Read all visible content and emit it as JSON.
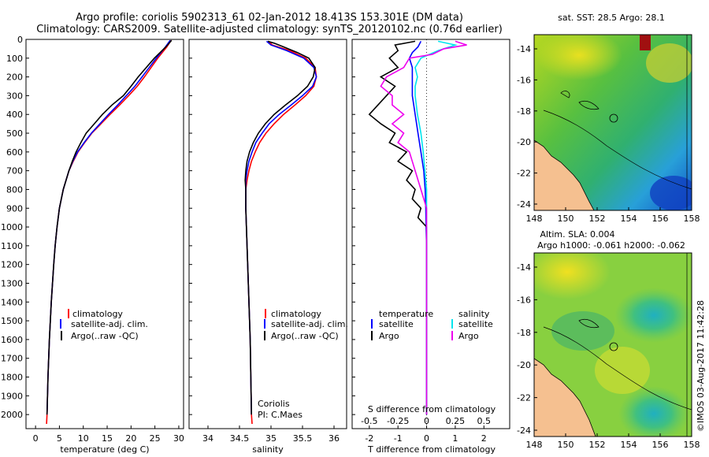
{
  "header": {
    "title_line1": "Argo profile: coriolis 5902313_61 02-Jan-2012 18.413S 153.301E (DM data)",
    "title_line2": "Climatology: CARS2009. Satellite-adjusted climatology: synTS_20120102.nc (0.76d earlier)"
  },
  "colors": {
    "climatology": "#ff0000",
    "satellite": "#0000ff",
    "argo": "#000000",
    "sal_satellite": "#00e5ee",
    "sal_argo": "#ee00ee",
    "land": "#f5c090"
  },
  "depth_axis": {
    "ticks": [
      0,
      100,
      200,
      300,
      400,
      500,
      600,
      700,
      800,
      900,
      1000,
      1100,
      1200,
      1300,
      1400,
      1500,
      1600,
      1700,
      1800,
      1900,
      2000
    ],
    "range": [
      0,
      2075
    ]
  },
  "chart_data": [
    {
      "type": "line",
      "name": "temperature-profile",
      "xlabel": "temperature (deg C)",
      "xlim": [
        -2,
        31
      ],
      "xticks": [
        0,
        5,
        10,
        15,
        20,
        25,
        30
      ],
      "legend": [
        "climatology",
        "satellite-adj. clim.",
        "Argo(..raw -QC)"
      ],
      "series": [
        {
          "name": "climatology",
          "depth": [
            5,
            40,
            100,
            150,
            200,
            250,
            300,
            350,
            400,
            450,
            500,
            550,
            600,
            650,
            700,
            800,
            900,
            1000,
            1100,
            1200,
            1400,
            1600,
            1800,
            2000,
            2050
          ],
          "values": [
            28.4,
            27.5,
            25.6,
            24.2,
            22.8,
            21.3,
            19.5,
            17.6,
            15.6,
            13.7,
            11.8,
            10.3,
            8.9,
            7.9,
            7.0,
            5.8,
            5.0,
            4.5,
            4.1,
            3.8,
            3.3,
            2.9,
            2.6,
            2.4,
            2.3
          ]
        },
        {
          "name": "satellite",
          "depth": [
            5,
            40,
            100,
            150,
            200,
            250,
            300,
            350,
            400,
            450,
            500,
            550,
            600,
            650,
            700,
            800,
            900,
            1000,
            1100,
            1200,
            1400,
            1600,
            1800,
            2000
          ],
          "values": [
            28.2,
            27.2,
            25.3,
            23.8,
            22.3,
            20.8,
            19.0,
            17.2,
            15.3,
            13.5,
            11.7,
            10.2,
            8.8,
            7.8,
            7.0,
            5.8,
            5.0,
            4.5,
            4.1,
            3.8,
            3.3,
            2.9,
            2.6,
            2.4
          ]
        },
        {
          "name": "Argo",
          "depth": [
            5,
            40,
            100,
            150,
            200,
            250,
            300,
            350,
            400,
            450,
            500,
            550,
            600,
            650,
            700,
            800,
            900,
            1000,
            1100,
            1200,
            1400,
            1600,
            1800,
            2000
          ],
          "values": [
            28.5,
            27.3,
            24.9,
            23.2,
            21.5,
            20.0,
            18.4,
            16.0,
            14.0,
            12.3,
            10.6,
            9.5,
            8.5,
            7.7,
            7.0,
            5.8,
            5.0,
            4.5,
            4.1,
            3.8,
            3.3,
            2.9,
            2.6,
            2.4
          ]
        }
      ]
    },
    {
      "type": "line",
      "name": "salinity-profile",
      "xlabel": "salinity",
      "xlim": [
        33.7,
        36.2
      ],
      "xticks": [
        34,
        34.5,
        35,
        35.5,
        36
      ],
      "legend": [
        "climatology",
        "satellite-adj. clim.",
        "Argo(..raw -QC)"
      ],
      "annotation": [
        "Coriolis",
        "PI: C.Maes"
      ],
      "series": [
        {
          "name": "climatology",
          "depth": [
            10,
            30,
            60,
            100,
            150,
            200,
            250,
            300,
            350,
            400,
            450,
            500,
            550,
            600,
            650,
            700,
            750,
            800,
            900,
            1000,
            1200,
            1400,
            1600,
            1800,
            2000,
            2050
          ],
          "values": [
            34.96,
            35.02,
            35.3,
            35.55,
            35.7,
            35.72,
            35.68,
            35.55,
            35.38,
            35.2,
            35.05,
            34.92,
            34.82,
            34.75,
            34.69,
            34.65,
            34.62,
            34.6,
            34.6,
            34.61,
            34.63,
            34.65,
            34.67,
            34.68,
            34.69,
            34.7
          ]
        },
        {
          "name": "satellite",
          "depth": [
            10,
            30,
            60,
            100,
            150,
            200,
            250,
            300,
            350,
            400,
            450,
            500,
            550,
            600,
            650,
            700,
            750,
            800,
            900,
            1000,
            1200,
            1400,
            1600,
            1800,
            2000
          ],
          "values": [
            34.93,
            35.0,
            35.25,
            35.52,
            35.68,
            35.72,
            35.66,
            35.5,
            35.32,
            35.13,
            34.97,
            34.86,
            34.76,
            34.7,
            34.65,
            34.62,
            34.6,
            34.6,
            34.6,
            34.61,
            34.63,
            34.65,
            34.67,
            34.68,
            34.69
          ]
        },
        {
          "name": "Argo",
          "depth": [
            10,
            20,
            40,
            70,
            100,
            150,
            200,
            250,
            300,
            350,
            400,
            450,
            500,
            550,
            600,
            650,
            700,
            750,
            800,
            900,
            1000,
            1200,
            1400,
            1600,
            1800,
            2000
          ],
          "values": [
            34.95,
            35.05,
            35.2,
            35.42,
            35.6,
            35.7,
            35.67,
            35.58,
            35.42,
            35.23,
            35.05,
            34.91,
            34.8,
            34.72,
            34.66,
            34.62,
            34.6,
            34.59,
            34.6,
            34.6,
            34.61,
            34.63,
            34.65,
            34.67,
            34.68,
            34.69
          ]
        }
      ]
    },
    {
      "type": "line",
      "name": "difference-profile",
      "xlabel_top": "S difference from climatology",
      "xlabel_bottom": "T difference from climatology",
      "xlim": [
        -2.6,
        2.9
      ],
      "t_ticks": [
        -2,
        -1,
        0,
        1,
        2
      ],
      "s_tick_labels": [
        "-0.5",
        "-0.25",
        "0",
        "0.25",
        "0.5"
      ],
      "legend_temperature": [
        "temperature",
        "satellite",
        "Argo"
      ],
      "legend_salinity": [
        "salinity",
        "satellite",
        "Argo"
      ],
      "series": [
        {
          "name": "T satellite",
          "depth": [
            10,
            40,
            70,
            100,
            150,
            200,
            300,
            400,
            500,
            600,
            700,
            800,
            900,
            1000,
            1100,
            1200,
            1500,
            2000
          ],
          "values": [
            -0.2,
            -0.3,
            -0.5,
            -0.6,
            -0.5,
            -0.5,
            -0.5,
            -0.4,
            -0.3,
            -0.2,
            -0.1,
            -0.05,
            -0.03,
            -0.02,
            0.0,
            0.0,
            0.0,
            0.0
          ]
        },
        {
          "name": "T Argo",
          "depth": [
            10,
            30,
            60,
            100,
            150,
            200,
            250,
            300,
            350,
            400,
            450,
            500,
            550,
            600,
            650,
            700,
            750,
            800,
            850,
            900,
            950,
            1000,
            1050,
            1100,
            1200,
            1500,
            2000
          ],
          "values": [
            -0.4,
            -1.1,
            -1.0,
            -1.3,
            -1.0,
            -1.6,
            -1.1,
            -1.4,
            -1.7,
            -2.0,
            -1.6,
            -1.1,
            -1.3,
            -0.7,
            -1.0,
            -0.5,
            -0.7,
            -0.4,
            -0.5,
            -0.2,
            -0.3,
            0.0,
            0.0,
            0.0,
            0.0,
            0.0,
            0.0
          ]
        },
        {
          "name": "S satellite",
          "depth": [
            10,
            30,
            60,
            100,
            150,
            200,
            250,
            300,
            400,
            500,
            600,
            800,
            1000,
            1200,
            1500,
            2000
          ],
          "values": [
            0.1,
            0.25,
            0.1,
            -0.05,
            -0.1,
            -0.08,
            -0.1,
            -0.1,
            -0.08,
            -0.05,
            -0.03,
            0.0,
            0.0,
            0.0,
            0.0,
            0.0
          ]
        },
        {
          "name": "S Argo",
          "depth": [
            10,
            30,
            50,
            80,
            100,
            150,
            200,
            250,
            300,
            350,
            400,
            450,
            500,
            550,
            600,
            700,
            800,
            900,
            1000,
            1200,
            1500,
            2000
          ],
          "values": [
            0.25,
            0.35,
            0.15,
            0.05,
            -0.15,
            -0.2,
            -0.35,
            -0.4,
            -0.3,
            -0.3,
            -0.2,
            -0.3,
            -0.2,
            -0.25,
            -0.15,
            -0.1,
            -0.05,
            0.0,
            0.0,
            0.0,
            0.0,
            0.0
          ]
        }
      ]
    }
  ],
  "maps": [
    {
      "name": "sst-map",
      "title_line1": "sat. SST: 28.5 Argo: 28.1",
      "title_line2": "",
      "lon_ticks": [
        "148",
        "150",
        "152",
        "154",
        "156",
        "158"
      ],
      "lat_ticks": [
        "-14",
        "-16",
        "-18",
        "-20",
        "-22",
        "-24"
      ]
    },
    {
      "name": "sla-map",
      "title_line1": "Altim. SLA: 0.004",
      "title_line2": "Argo h1000: -0.061 h2000: -0.062",
      "lon_ticks": [
        "148",
        "150",
        "152",
        "154",
        "156",
        "158"
      ],
      "lat_ticks": [
        "-14",
        "-16",
        "-18",
        "-20",
        "-22",
        "-24"
      ]
    }
  ],
  "watermark": "©IMOS 03-Aug-2017 11:42:28"
}
